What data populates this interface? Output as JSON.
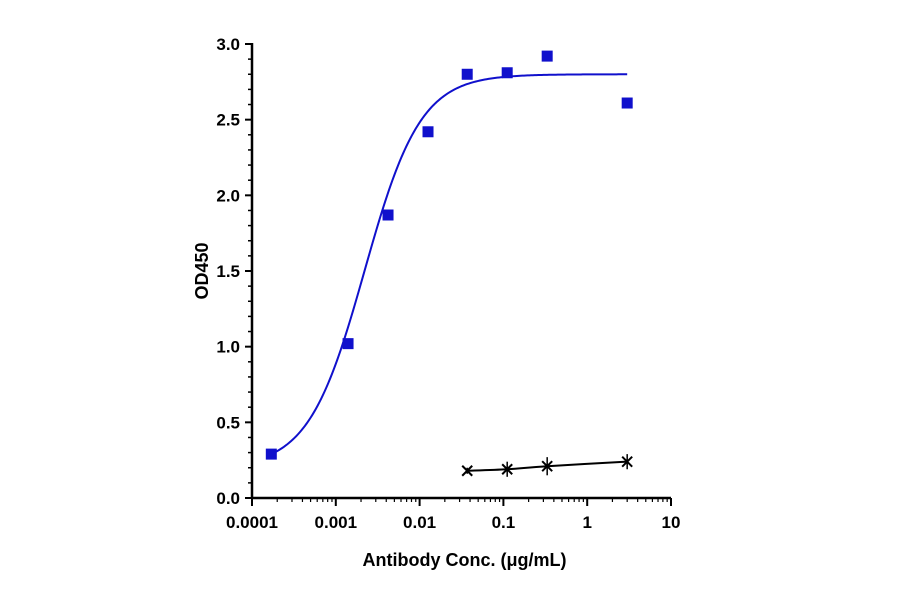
{
  "chart_data": {
    "type": "scatter",
    "title": "",
    "xlabel": "Antibody Conc. (μg/mL)",
    "ylabel": "OD450",
    "xscale": "log",
    "xlim": [
      0.0001,
      10
    ],
    "ylim": [
      0,
      3.0
    ],
    "xticks": [
      "0.0001",
      "0.001",
      "0.01",
      "0.1",
      "1",
      "10"
    ],
    "yticks": [
      "0.0",
      "0.5",
      "1.0",
      "1.5",
      "2.0",
      "2.5",
      "3.0"
    ],
    "grid": false,
    "legend": "none",
    "series": [
      {
        "marker": "square",
        "color": "#1010CC",
        "fit": "4PL sigmoid",
        "x": [
          0.00017,
          0.0014,
          0.0042,
          0.0126,
          0.037,
          0.111,
          0.333,
          3.0
        ],
        "y": [
          0.29,
          1.02,
          1.87,
          2.42,
          2.8,
          2.81,
          2.92,
          2.61
        ],
        "fit_params": {
          "bottom": 0.2,
          "top": 2.8,
          "ec50": 0.0022,
          "hill": 1.3
        }
      },
      {
        "marker": "x",
        "color": "#000000",
        "fit": "smooth line",
        "x": [
          0.037,
          0.111,
          0.333,
          3.0
        ],
        "y": [
          0.18,
          0.19,
          0.21,
          0.24
        ],
        "yerr": [
          0.02,
          0.05,
          0.06,
          0.05
        ]
      }
    ]
  }
}
